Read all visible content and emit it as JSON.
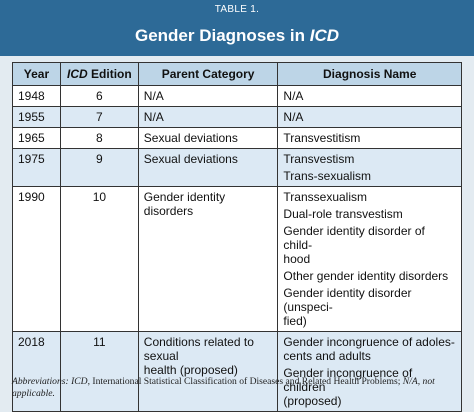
{
  "header": {
    "label": "TABLE 1.",
    "title": [
      {
        "text": "Gender Diagnoses in "
      },
      {
        "text": "ICD",
        "italic": true
      }
    ]
  },
  "table": {
    "columns": [
      [
        {
          "text": "Year"
        }
      ],
      [
        {
          "text": "ICD",
          "italic": true
        },
        {
          "text": " Edition"
        }
      ],
      [
        {
          "text": "Parent Category"
        }
      ],
      [
        {
          "text": "Diagnosis Name"
        }
      ]
    ],
    "rows": [
      {
        "year": "1948",
        "edition": "6",
        "parent": [
          "N/A"
        ],
        "diagnoses": [
          [
            "N/A"
          ]
        ]
      },
      {
        "year": "1955",
        "edition": "7",
        "parent": [
          "N/A"
        ],
        "diagnoses": [
          [
            "N/A"
          ]
        ]
      },
      {
        "year": "1965",
        "edition": "8",
        "parent": [
          "Sexual deviations"
        ],
        "diagnoses": [
          [
            "Transvestitism"
          ]
        ]
      },
      {
        "year": "1975",
        "edition": "9",
        "parent": [
          "Sexual deviations"
        ],
        "diagnoses": [
          [
            "Transvestism"
          ],
          [
            "Trans-sexualism"
          ]
        ]
      },
      {
        "year": "1990",
        "edition": "10",
        "parent": [
          "Gender identity disorders"
        ],
        "diagnoses": [
          [
            "Transsexualism"
          ],
          [
            "Dual-role transvestism"
          ],
          [
            "Gender identity disorder of child-",
            "hood"
          ],
          [
            "Other gender identity disorders"
          ],
          [
            "Gender identity disorder (unspeci-",
            "fied)"
          ]
        ]
      },
      {
        "year": "2018",
        "edition": "11",
        "parent": [
          "Conditions related to sexual",
          "health (proposed)"
        ],
        "diagnoses": [
          [
            "Gender incongruence of adoles-",
            "cents and adults"
          ],
          [
            "Gender incongruence of children",
            "(proposed)"
          ]
        ]
      }
    ]
  },
  "footnote": [
    {
      "text": "Abbreviations: ",
      "italic": true
    },
    {
      "text": "ICD",
      "italic": true
    },
    {
      "text": ", International Statistical Classification of Diseases and Related Health Problems; "
    },
    {
      "text": "N/A",
      "italic": true
    },
    {
      "text": ", not applicable.",
      "italic": true
    }
  ]
}
